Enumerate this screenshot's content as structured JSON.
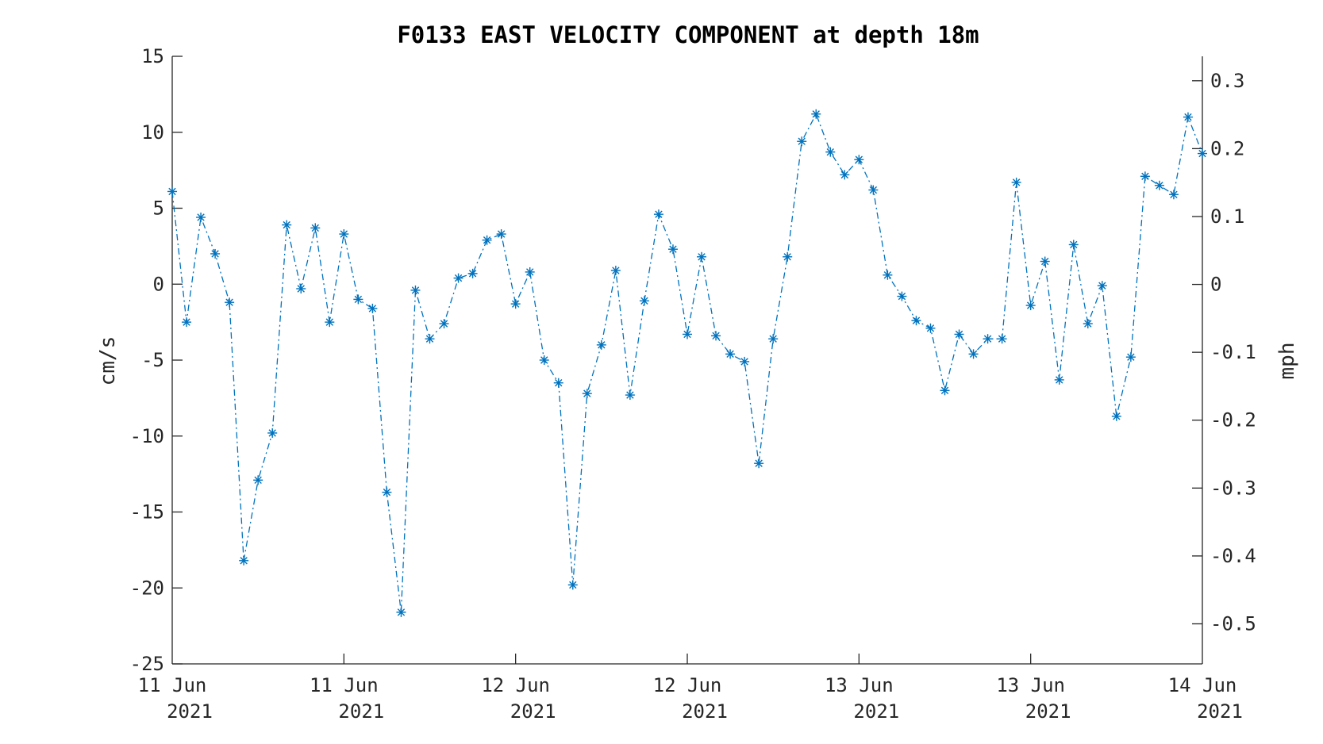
{
  "chart_data": {
    "type": "line",
    "title": "F0133 EAST VELOCITY COMPONENT at depth 18m",
    "ylabel": "cm/s",
    "y2label": "mph",
    "xlabel": "",
    "ylim": [
      -25,
      15
    ],
    "y2lim": [
      -0.559,
      0.336
    ],
    "yticks": [
      15,
      10,
      5,
      0,
      -5,
      -10,
      -15,
      -20,
      -25
    ],
    "y2ticks": [
      0.3,
      0.2,
      0.1,
      0,
      -0.1,
      -0.2,
      -0.3,
      -0.4,
      -0.5
    ],
    "y2tick_labels": [
      "0.3",
      "0.2",
      "0.1",
      "0",
      "-0.1",
      "-0.2",
      "-0.3",
      "-0.4",
      "-0.5"
    ],
    "xticks": [
      {
        "line1": "11 Jun",
        "line2": "2021"
      },
      {
        "line1": "11 Jun",
        "line2": "2021"
      },
      {
        "line1": "12 Jun",
        "line2": "2021"
      },
      {
        "line1": "12 Jun",
        "line2": "2021"
      },
      {
        "line1": "13 Jun",
        "line2": "2021"
      },
      {
        "line1": "13 Jun",
        "line2": "2021"
      },
      {
        "line1": "14 Jun",
        "line2": "2021"
      }
    ],
    "grid": false,
    "legend": "none",
    "marker": "asterisk",
    "line_style": "dash-dot",
    "series_color": "#0072BD",
    "series": [
      {
        "values": [
          6.1,
          -2.5,
          4.4,
          2.0,
          -1.2,
          -18.2,
          -12.9,
          -9.8,
          3.9,
          -0.3,
          3.7,
          -2.5,
          3.3,
          -1.0,
          -1.6,
          -13.7,
          -21.6,
          -0.4,
          -3.6,
          -2.6,
          0.4,
          0.7,
          2.9,
          3.3,
          -1.3,
          0.8,
          -5.0,
          -6.5,
          -19.8,
          -7.2,
          -4.0,
          0.9,
          -7.3,
          -1.1,
          4.6,
          2.3,
          -3.3,
          1.8,
          -3.4,
          -4.6,
          -5.1,
          -11.8,
          -3.6,
          1.8,
          9.4,
          11.2,
          8.7,
          7.2,
          8.2,
          6.2,
          0.6,
          -0.8,
          -2.4,
          -2.9,
          -7.0,
          -3.3,
          -4.6,
          -3.6,
          -3.6,
          6.7,
          -1.4,
          1.5,
          -6.3,
          2.6,
          -2.6,
          -0.1,
          -8.7,
          -4.8,
          7.1,
          6.5,
          5.9,
          11.0,
          8.6
        ]
      }
    ]
  }
}
